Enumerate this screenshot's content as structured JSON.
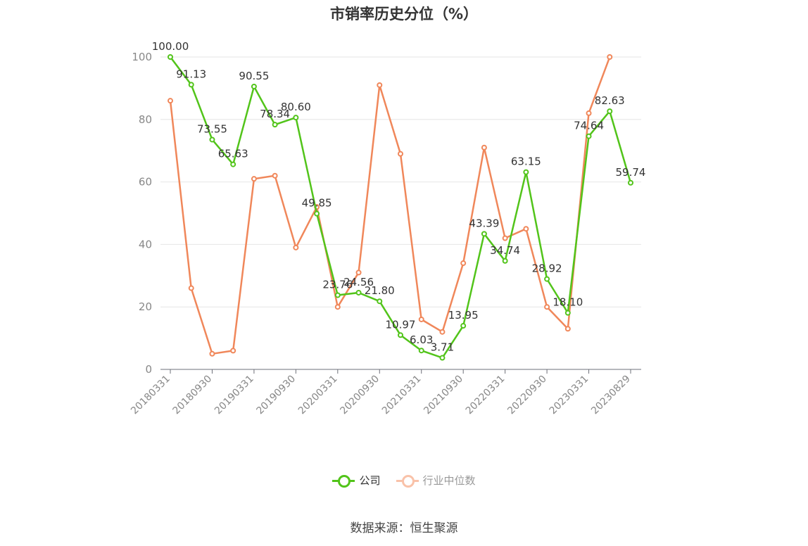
{
  "chart_data": {
    "type": "line",
    "title": "市销率历史分位（%）",
    "xlabel": "",
    "ylabel": "",
    "ylim": [
      0,
      100
    ],
    "yticks": [
      0,
      20,
      40,
      60,
      80,
      100
    ],
    "x_tick_labels": [
      "20180331",
      "20180930",
      "20190331",
      "20190930",
      "20200331",
      "20200930",
      "20210331",
      "20210930",
      "20220331",
      "20220930",
      "20230331",
      "20230829"
    ],
    "grid": true,
    "legend_position": "bottom",
    "series": [
      {
        "name": "公司",
        "color": "#52c41a",
        "show_labels": true,
        "values": [
          100.0,
          91.13,
          73.55,
          65.63,
          90.55,
          78.34,
          80.6,
          49.85,
          23.76,
          24.56,
          21.8,
          10.97,
          6.03,
          3.71,
          13.95,
          43.39,
          34.74,
          63.15,
          28.92,
          18.1,
          74.64,
          82.63,
          59.74
        ],
        "labels": [
          "100.00",
          "91.13",
          "73.55",
          "65.63",
          "90.55",
          "78.34",
          "80.60",
          "49.85",
          "23.76",
          "24.56",
          "21.80",
          "10.97",
          "6.03",
          "3.71",
          "13.95",
          "43.39",
          "34.74",
          "63.15",
          "28.92",
          "18.10",
          "74.64",
          "82.63",
          "59.74"
        ]
      },
      {
        "name": "行业中位数",
        "color": "#f0875a",
        "show_labels": false,
        "values": [
          86,
          26,
          5,
          6,
          61,
          62,
          39,
          52,
          20,
          31,
          91,
          69,
          16,
          12,
          34,
          71,
          42,
          45,
          20,
          13,
          82,
          100,
          null
        ]
      }
    ]
  },
  "legend": {
    "items": [
      {
        "label": "公司",
        "color": "#52c41a",
        "active": true
      },
      {
        "label": "行业中位数",
        "color": "#f0875a",
        "active": false
      }
    ]
  },
  "source": "数据来源：恒生聚源"
}
